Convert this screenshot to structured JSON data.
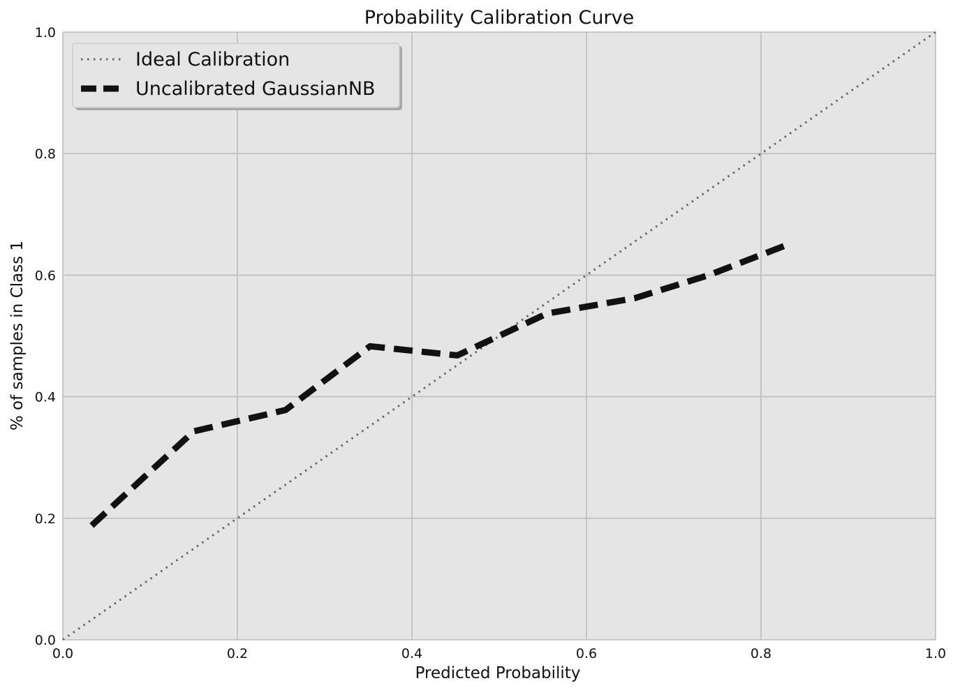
{
  "colors": {
    "plot_background": "#e5e5e5",
    "grid": "#bcbcbc",
    "ideal_line": "#666666",
    "model_line": "#111111",
    "legend_background": "#e5e5e5",
    "legend_border": "#cccccc"
  },
  "chart_data": {
    "type": "line",
    "title": "Probability Calibration Curve",
    "xlabel": "Predicted Probability",
    "ylabel": "% of samples in Class 1",
    "xlim": [
      0.0,
      1.0
    ],
    "ylim": [
      0.0,
      1.0
    ],
    "xticks": [
      0.0,
      0.2,
      0.4,
      0.6,
      0.8,
      1.0
    ],
    "xtick_labels": [
      "0.0",
      "0.2",
      "0.4",
      "0.6",
      "0.8",
      "1.0"
    ],
    "yticks": [
      0.0,
      0.2,
      0.4,
      0.6,
      0.8,
      1.0
    ],
    "ytick_labels": [
      "0.0",
      "0.2",
      "0.4",
      "0.6",
      "0.8",
      "1.0"
    ],
    "grid": true,
    "legend_position": "top-left",
    "series": [
      {
        "name": "Ideal Calibration",
        "style": "dotted",
        "x": [
          0.0,
          1.0
        ],
        "y": [
          0.0,
          1.0
        ]
      },
      {
        "name": "Uncalibrated GaussianNB",
        "style": "dashed",
        "x": [
          0.033,
          0.15,
          0.255,
          0.352,
          0.452,
          0.555,
          0.655,
          0.74,
          0.83
        ],
        "y": [
          0.188,
          0.343,
          0.378,
          0.483,
          0.468,
          0.537,
          0.562,
          0.6,
          0.65
        ]
      }
    ]
  }
}
